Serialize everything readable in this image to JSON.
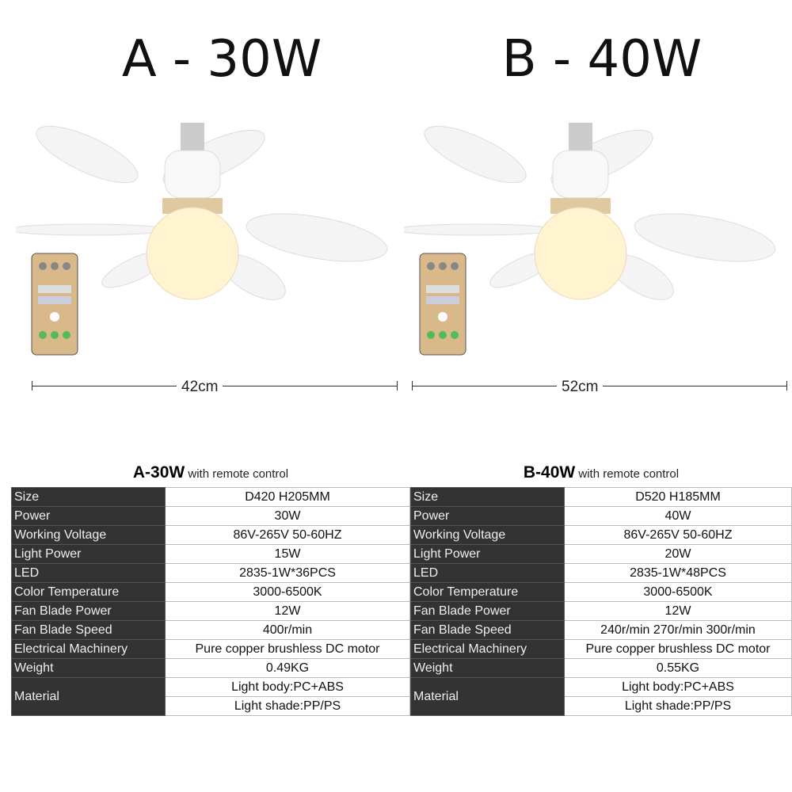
{
  "models": [
    {
      "title": "A - 30W",
      "dimension": "42cm",
      "table_model": "A-30W",
      "table_suffix": "with remote control",
      "rows": [
        [
          "Size",
          "D420 H205MM"
        ],
        [
          "Power",
          "30W"
        ],
        [
          "Working Voltage",
          "86V-265V 50-60HZ"
        ],
        [
          "Light Power",
          "15W"
        ],
        [
          "LED",
          "2835-1W*36PCS"
        ],
        [
          "Color Temperature",
          "3000-6500K"
        ],
        [
          "Fan Blade Power",
          "12W"
        ],
        [
          "Fan Blade Speed",
          "400r/min"
        ],
        [
          "Electrical Machinery",
          "Pure copper brushless DC motor"
        ],
        [
          "Weight",
          "0.49KG"
        ]
      ],
      "material_label": "Material",
      "material": [
        "Light body:PC+ABS",
        "Light shade:PP/PS"
      ]
    },
    {
      "title": "B - 40W",
      "dimension": "52cm",
      "table_model": "B-40W",
      "table_suffix": "with remote control",
      "rows": [
        [
          "Size",
          "D520 H185MM"
        ],
        [
          "Power",
          "40W"
        ],
        [
          "Working Voltage",
          "86V-265V 50-60HZ"
        ],
        [
          "Light Power",
          "20W"
        ],
        [
          "LED",
          "2835-1W*48PCS"
        ],
        [
          "Color Temperature",
          "3000-6500K"
        ],
        [
          "Fan Blade Power",
          "12W"
        ],
        [
          "Fan Blade Speed",
          "240r/min 270r/min 300r/min"
        ],
        [
          "Electrical Machinery",
          "Pure copper brushless DC motor"
        ],
        [
          "Weight",
          "0.55KG"
        ]
      ],
      "material_label": "Material",
      "material": [
        "Light body:PC+ABS",
        "Light shade:PP/PS"
      ]
    }
  ],
  "colors": {
    "label_bg": "#333333",
    "remote_body": "#d9b98a",
    "bulb_glow": "#fff3d0"
  }
}
